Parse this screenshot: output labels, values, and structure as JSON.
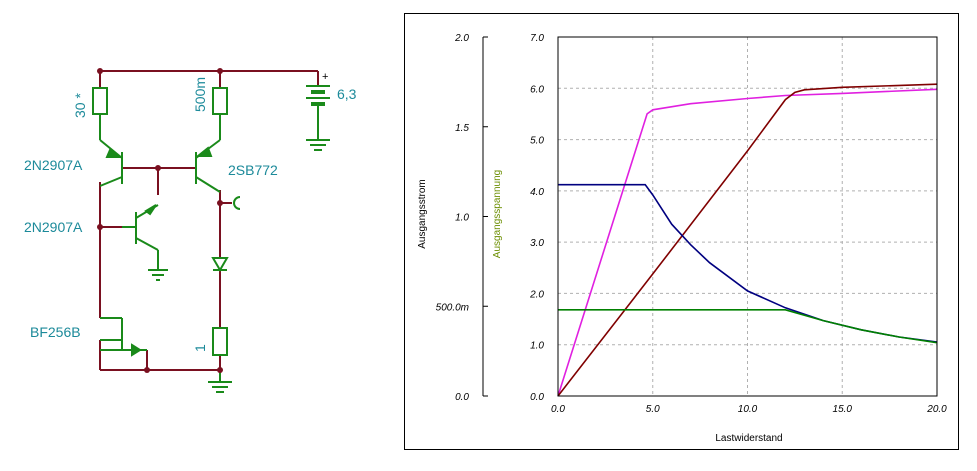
{
  "schematic": {
    "labels": {
      "r1": "30 *",
      "r2": "500m",
      "supply": "6,3",
      "supply_plus": "+",
      "q1": "2N2907A",
      "q2": "2N2907A",
      "q3": "2SB772",
      "jfet": "BF256B",
      "rload": "1"
    },
    "colors": {
      "wire": "#7a1020",
      "part": "#1a8a1a",
      "label": "#1c8a9a"
    }
  },
  "chart_data": {
    "type": "line",
    "xlabel": "Lastwiderstand",
    "left_axis_label": "Ausgangsstrom",
    "right_axis_label": "Ausgangsspannung",
    "x_ticks": [
      "0.0",
      "5.0",
      "10.0",
      "15.0",
      "20.0"
    ],
    "left_ticks": [
      "0.0",
      "500.0m",
      "1.0",
      "1.5",
      "2.0"
    ],
    "right_ticks": [
      "0.0",
      "1.0",
      "2.0",
      "3.0",
      "4.0",
      "5.0",
      "6.0",
      "7.0"
    ],
    "xlim": [
      0,
      20
    ],
    "ylim_left": [
      0,
      2.0
    ],
    "ylim_right": [
      0,
      7.0
    ],
    "grid": true,
    "series": [
      {
        "axis": "right",
        "color": "#e020e0",
        "points": [
          [
            0,
            0
          ],
          [
            4.7,
            5.5
          ],
          [
            5,
            5.58
          ],
          [
            7,
            5.7
          ],
          [
            10,
            5.8
          ],
          [
            12,
            5.86
          ],
          [
            15,
            5.9
          ],
          [
            20,
            5.98
          ]
        ]
      },
      {
        "axis": "right",
        "color": "#800000",
        "points": [
          [
            0,
            0
          ],
          [
            5,
            2.38
          ],
          [
            10,
            4.78
          ],
          [
            12,
            5.78
          ],
          [
            12.5,
            5.92
          ],
          [
            13,
            5.97
          ],
          [
            15,
            6.02
          ],
          [
            20,
            6.08
          ]
        ]
      },
      {
        "axis": "right",
        "color": "#000080",
        "points": [
          [
            0,
            4.12
          ],
          [
            4.6,
            4.12
          ],
          [
            5,
            3.92
          ],
          [
            6,
            3.35
          ],
          [
            7,
            2.95
          ],
          [
            8,
            2.6
          ],
          [
            10,
            2.05
          ],
          [
            12,
            1.72
          ],
          [
            14,
            1.47
          ],
          [
            16,
            1.29
          ],
          [
            18,
            1.15
          ],
          [
            20,
            1.05
          ]
        ]
      },
      {
        "axis": "right",
        "color": "#008000",
        "points": [
          [
            0,
            1.68
          ],
          [
            11.9,
            1.68
          ],
          [
            12,
            1.68
          ],
          [
            14,
            1.47
          ],
          [
            16,
            1.29
          ],
          [
            18,
            1.15
          ],
          [
            20,
            1.04
          ]
        ]
      }
    ]
  }
}
